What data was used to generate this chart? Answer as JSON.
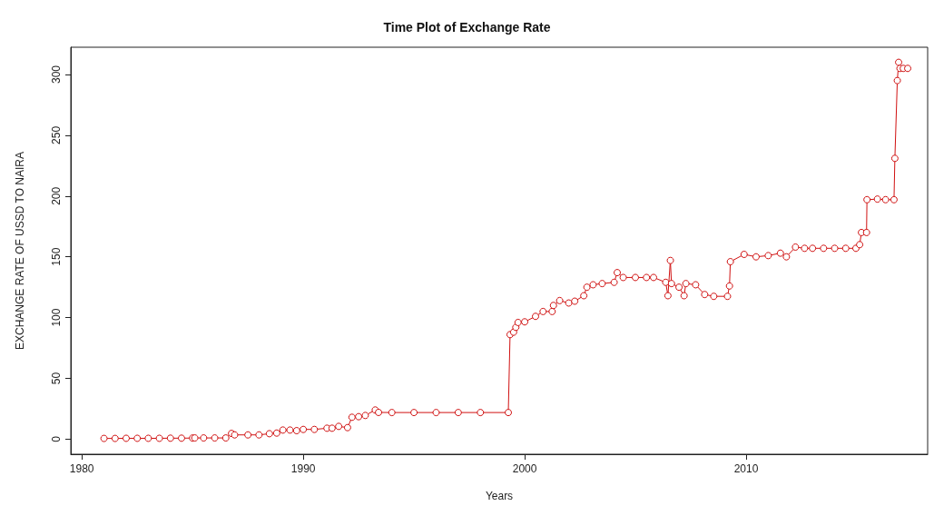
{
  "chart_data": {
    "type": "line",
    "title": "Time Plot of Exchange Rate",
    "xlabel": "Years",
    "ylabel": "EXCHANGE RATE OF USSD TO NAIRA",
    "xlim": [
      1979.5,
      2018.2
    ],
    "xticks": [
      1980,
      1990,
      2000,
      2010
    ],
    "ylim": [
      -12.4,
      322.4
    ],
    "yticks": [
      0,
      50,
      100,
      150,
      200,
      250,
      300
    ],
    "grid": false,
    "marker": "circle",
    "line_style": "solid",
    "series": [
      {
        "color": "#d01010",
        "x": [
          1981,
          1981.5,
          1982,
          1982.5,
          1983,
          1983.5,
          1984,
          1984.5,
          1985,
          1985.1,
          1985.5,
          1986,
          1986.5,
          1986.76,
          1986.9,
          1987.5,
          1988,
          1988.47,
          1988.8,
          1989.08,
          1989.4,
          1989.7,
          1990,
          1990.5,
          1991.07,
          1991.3,
          1991.6,
          1992,
          1992.2,
          1992.5,
          1992.8,
          1993.25,
          1993.4,
          1994,
          1995,
          1996,
          1997,
          1998,
          1999.26,
          1999.34,
          1999.5,
          1999.6,
          1999.7,
          2000,
          2000.49,
          2000.83,
          2001.24,
          2001.3,
          2001.58,
          2001.99,
          2002.26,
          2002.67,
          2002.81,
          2003.09,
          2003.5,
          2004.04,
          2004.18,
          2004.45,
          2005,
          2005.5,
          2005.82,
          2006.37,
          2006.47,
          2006.58,
          2006.63,
          2006.97,
          2007.2,
          2007.28,
          2007.72,
          2008.13,
          2008.54,
          2009.16,
          2009.25,
          2009.29,
          2009.91,
          2010.45,
          2011,
          2011.55,
          2011.82,
          2012.23,
          2012.64,
          2013,
          2013.5,
          2014,
          2014.5,
          2014.96,
          2015.13,
          2015.21,
          2015.44,
          2015.46,
          2015.93,
          2016.3,
          2016.68,
          2016.72,
          2016.83,
          2016.89,
          2016.95,
          2017.1,
          2017.3
        ],
        "values": [
          0.6,
          0.6,
          0.7,
          0.7,
          0.7,
          0.7,
          0.8,
          0.8,
          0.9,
          1,
          1,
          1,
          1,
          4.7,
          3.5,
          3.5,
          3.5,
          4.5,
          5,
          7.5,
          7.5,
          7,
          8,
          8,
          9,
          9,
          10.5,
          9.5,
          18,
          18.5,
          19.5,
          24,
          22,
          21.9,
          21.9,
          21.9,
          21.9,
          21.9,
          21.9,
          86,
          88,
          92,
          96,
          96.5,
          101,
          105,
          105,
          110,
          114,
          112,
          113.5,
          118,
          125,
          127,
          128,
          129,
          137,
          133,
          133,
          133,
          133,
          129,
          118,
          147,
          128,
          125,
          118,
          128,
          127,
          119,
          117.5,
          117.5,
          126,
          146,
          152,
          150,
          151,
          153,
          150,
          158,
          157,
          157,
          157,
          157,
          157,
          157,
          160,
          170,
          170,
          197,
          197.5,
          197,
          197,
          231,
          295,
          310,
          305,
          305,
          305
        ]
      }
    ]
  }
}
